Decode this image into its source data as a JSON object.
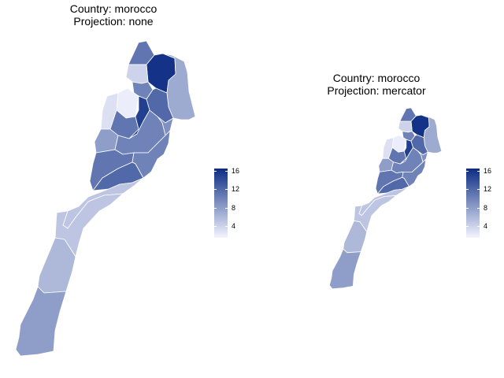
{
  "panels": [
    {
      "title_line1": "Country: morocco",
      "title_line2": "Projection: none",
      "legend": {
        "ticks": [
          "16",
          "12",
          "8",
          "4"
        ],
        "tick_values": [
          16,
          12,
          8,
          4
        ],
        "min": 1.5,
        "max": 16.5
      }
    },
    {
      "title_line1": "Country: morocco",
      "title_line2": "Projection: mercator",
      "legend": {
        "ticks": [
          "16",
          "12",
          "8",
          "4"
        ],
        "tick_values": [
          16,
          12,
          8,
          4
        ],
        "min": 1.5,
        "max": 16.5
      }
    }
  ],
  "colors": {
    "low": "#f3f4fe",
    "high": "#0c2c84"
  },
  "regions": [
    {
      "id": "tanger",
      "value": 11
    },
    {
      "id": "tetouan",
      "value": 16
    },
    {
      "id": "oriental",
      "value": 7
    },
    {
      "id": "rif-west",
      "value": 4
    },
    {
      "id": "gharb",
      "value": 10
    },
    {
      "id": "rabat",
      "value": 2
    },
    {
      "id": "fes",
      "value": 12
    },
    {
      "id": "taza",
      "value": 9
    },
    {
      "id": "casablanca",
      "value": 3
    },
    {
      "id": "chaouia",
      "value": 11
    },
    {
      "id": "meknes",
      "value": 15
    },
    {
      "id": "doukkala",
      "value": 8
    },
    {
      "id": "tadla",
      "value": 10
    },
    {
      "id": "marrakech",
      "value": 11
    },
    {
      "id": "drah-tafilalet",
      "value": 10
    },
    {
      "id": "souss",
      "value": 12
    },
    {
      "id": "guelmim",
      "value": 5
    },
    {
      "id": "laayoune",
      "value": 5
    },
    {
      "id": "sakia",
      "value": 6
    },
    {
      "id": "oued-eddahab",
      "value": 8
    }
  ]
}
